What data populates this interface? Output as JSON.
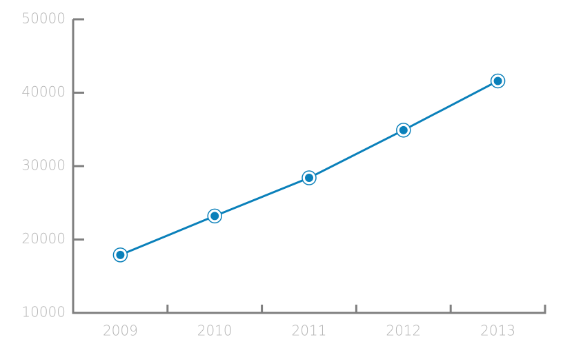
{
  "chart_data": {
    "type": "line",
    "categories": [
      "2009",
      "2010",
      "2011",
      "2012",
      "2013"
    ],
    "values": [
      17900,
      23200,
      28400,
      34900,
      41600
    ],
    "color": "#0a80ba",
    "ylim": [
      10000,
      50000
    ],
    "yticks": [
      10000,
      20000,
      30000,
      40000,
      50000
    ],
    "grid": false
  }
}
